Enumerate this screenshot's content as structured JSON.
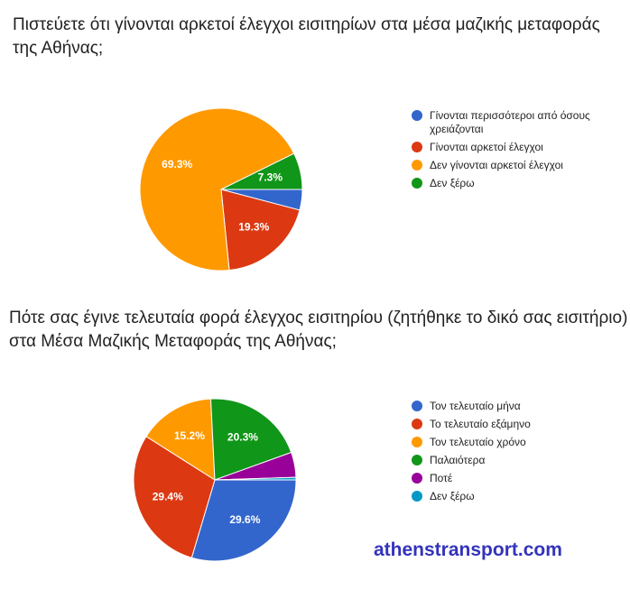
{
  "chart_data": [
    {
      "type": "pie",
      "title": "Πιστεύετε ότι γίνονται αρκετοί έλεγχοι εισιτηρίων στα μέσα μαζικής μεταφοράς της Αθήνας;",
      "categories": [
        "Γίνονται περισσότεροι από όσους χρειάζονται",
        "Γίνονται αρκετοί έλεγχοι",
        "Δεν γίνονται αρκετοί έλεγχοι",
        "Δεν ξέρω"
      ],
      "values": [
        4.1,
        19.3,
        69.3,
        7.3
      ],
      "value_labels": [
        null,
        "19.3%",
        "69.3%",
        "7.3%"
      ],
      "colors": [
        "#3366cc",
        "#dc3912",
        "#ff9900",
        "#109618"
      ]
    },
    {
      "type": "pie",
      "title": "Πότε σας έγινε τελευταία φορά έλεγχος εισιτηρίου (ζητήθηκε το δικό σας εισιτήριο) στα Μέσα Μαζικής Μεταφοράς της Αθήνας;",
      "categories": [
        "Τον τελευταίο μήνα",
        "Το τελευταίο εξάμηνο",
        "Τον τελευταίο χρόνο",
        "Παλαιότερα",
        "Ποτέ",
        "Δεν ξέρω"
      ],
      "values": [
        29.6,
        29.4,
        15.2,
        20.3,
        5.0,
        0.5
      ],
      "value_labels": [
        "29.6%",
        "29.4%",
        "15.2%",
        "20.3%",
        null,
        null
      ],
      "colors": [
        "#3366cc",
        "#dc3912",
        "#ff9900",
        "#109618",
        "#990099",
        "#0099c6"
      ]
    }
  ],
  "watermark": "athenstransport.com"
}
